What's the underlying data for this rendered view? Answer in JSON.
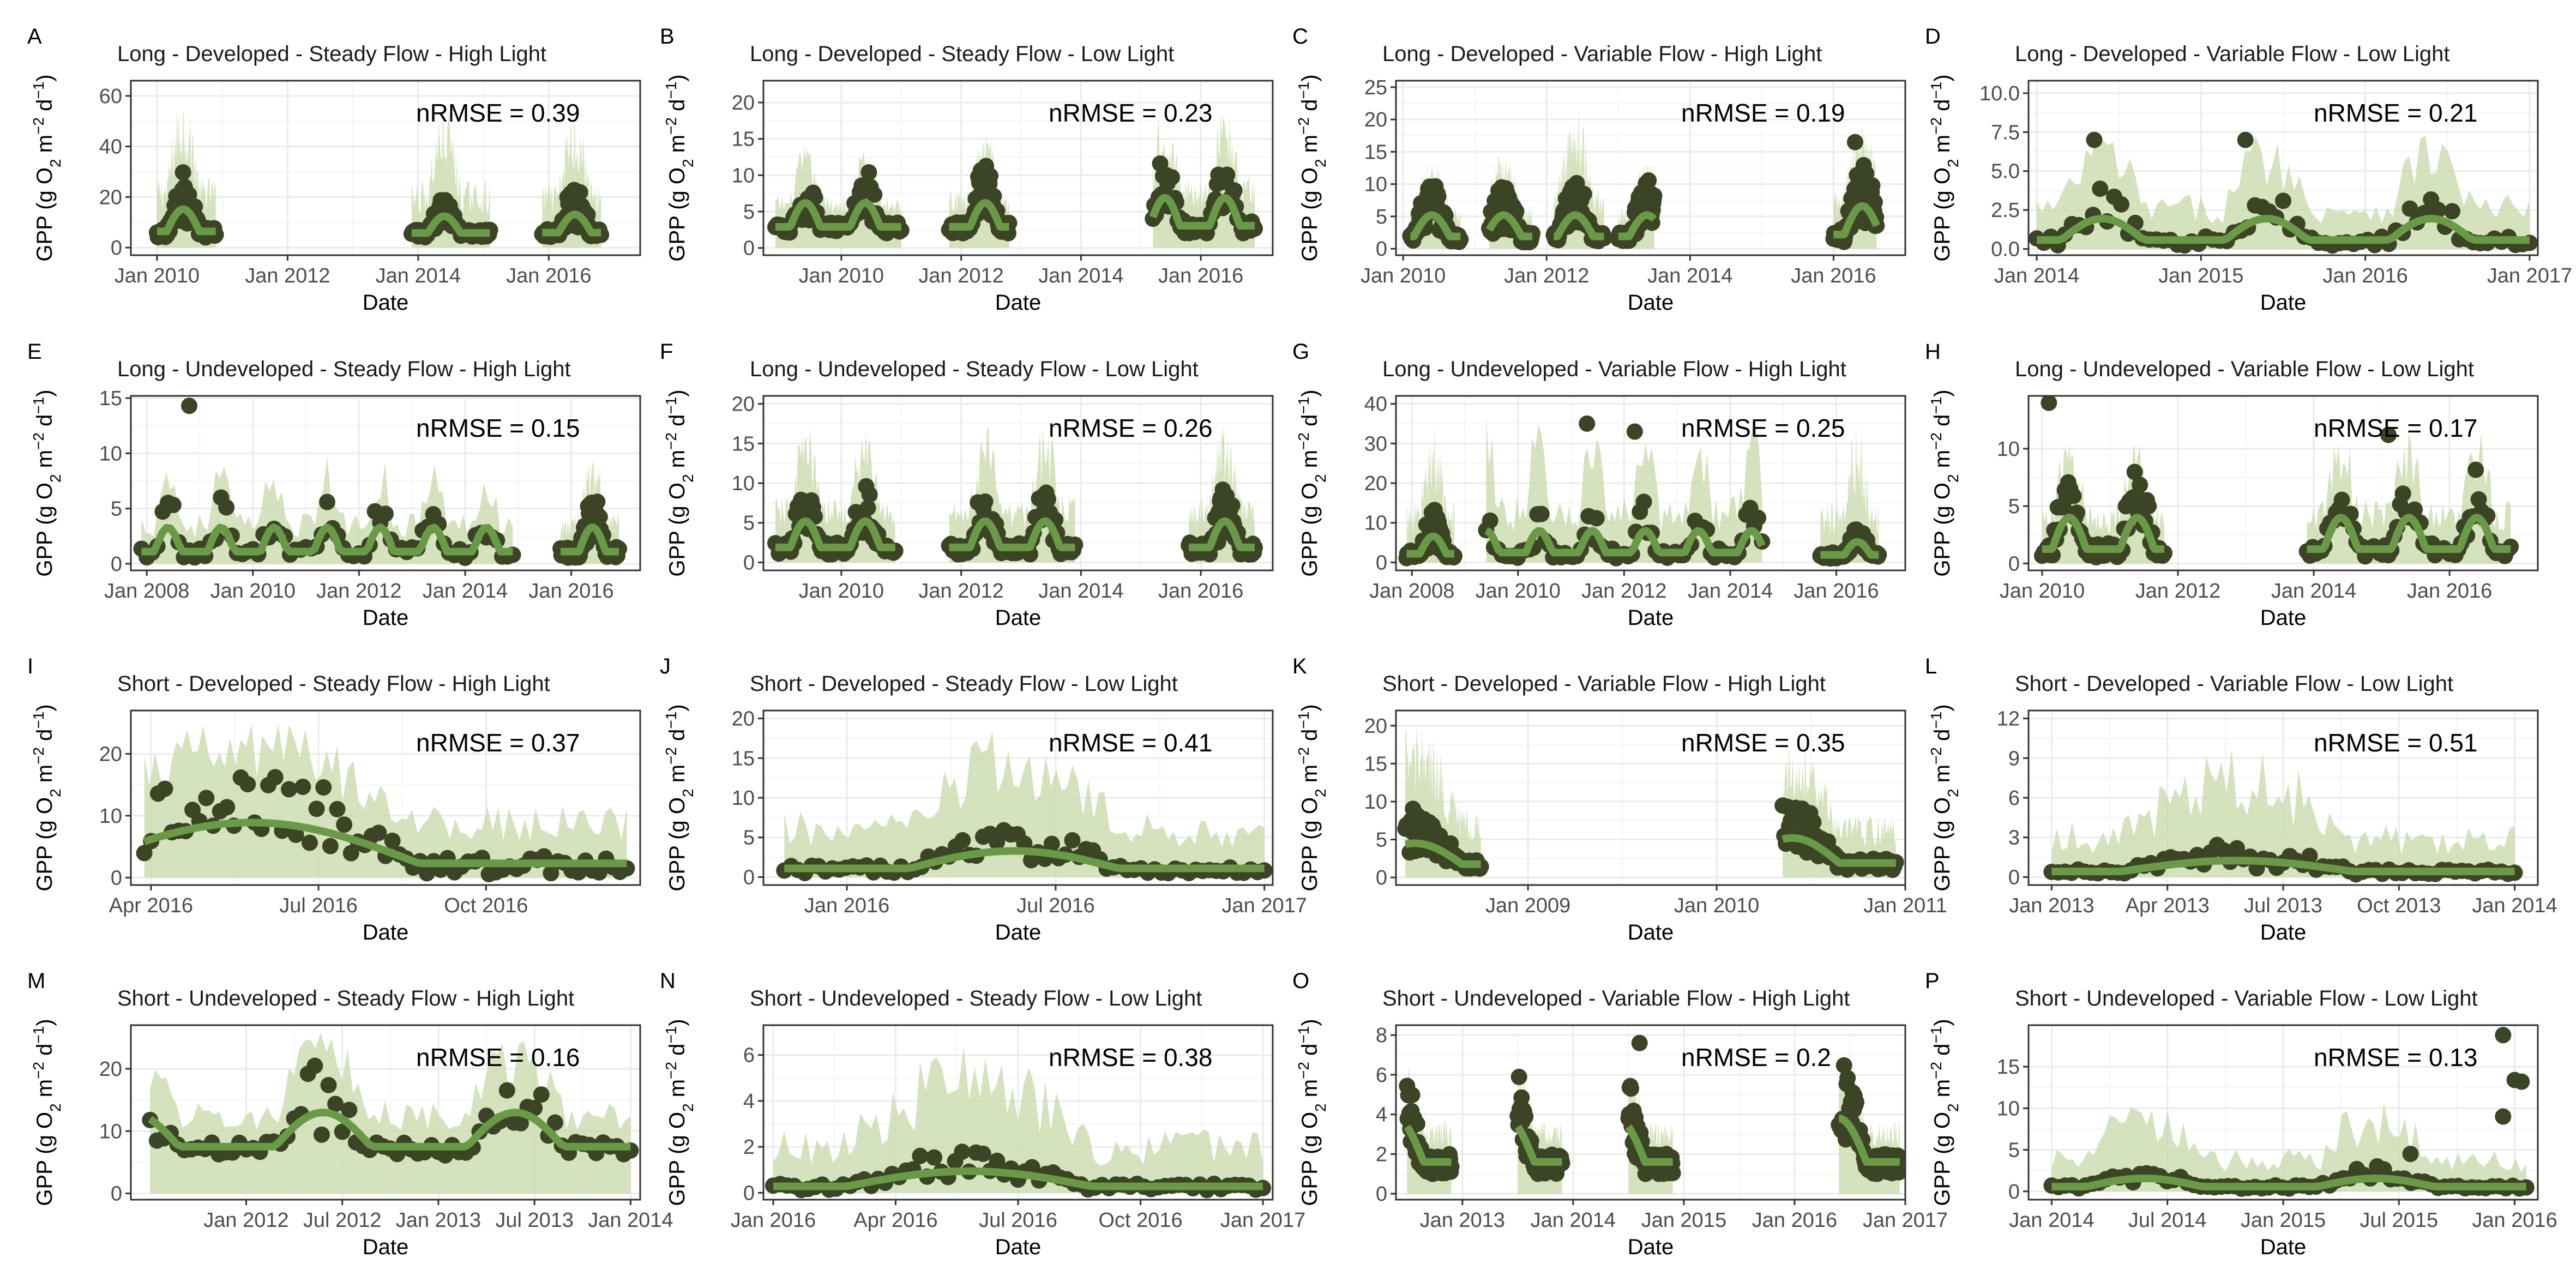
{
  "colors": {
    "observed": "#3b4424",
    "predicted_line": "#6a9a48",
    "interval_fill": "#c7d8a8"
  },
  "axis_labels": {
    "xlabel": "Date",
    "ylabel_main": "GPP (g O",
    "ylabel_sub2": "2",
    "ylabel_mid": " m",
    "ylabel_sup1": "−2",
    "ylabel_mid2": " d",
    "ylabel_sup2": "−1",
    "ylabel_end": ")"
  },
  "chart_data": [
    {
      "letter": "A",
      "title": "Long - Developed - Steady Flow - High Light",
      "metric": "nRMSE =  0.39",
      "type": "line",
      "xlim": [
        2009.6,
        2017.4
      ],
      "ylim": [
        -3,
        66
      ],
      "xticks": [
        {
          "v": 2010,
          "label": "Jan 2010"
        },
        {
          "v": 2012,
          "label": "Jan 2012"
        },
        {
          "v": 2014,
          "label": "Jan 2014"
        },
        {
          "v": 2016,
          "label": "Jan 2016"
        }
      ],
      "yticks": [
        0,
        20,
        40,
        60
      ],
      "segments": [
        {
          "start": 2010.0,
          "end": 2010.9,
          "base": 4,
          "amp": 16,
          "upper": 62
        },
        {
          "start": 2013.9,
          "end": 2015.1,
          "base": 4,
          "amp": 12,
          "upper": 58
        },
        {
          "start": 2015.9,
          "end": 2016.8,
          "base": 4,
          "amp": 13,
          "upper": 56
        }
      ],
      "outliers": []
    },
    {
      "letter": "B",
      "title": "Long - Developed - Steady Flow - Low Light",
      "metric": "nRMSE =  0.23",
      "type": "line",
      "xlim": [
        2008.7,
        2017.2
      ],
      "ylim": [
        -1,
        23
      ],
      "xticks": [
        {
          "v": 2010,
          "label": "Jan 2010"
        },
        {
          "v": 2012,
          "label": "Jan 2012"
        },
        {
          "v": 2014,
          "label": "Jan 2014"
        },
        {
          "v": 2016,
          "label": "Jan 2016"
        }
      ],
      "yticks": [
        0,
        5,
        10,
        15,
        20
      ],
      "segments": [
        {
          "start": 2008.9,
          "end": 2011.0,
          "base": 2,
          "amp": 6,
          "upper": 14
        },
        {
          "start": 2011.8,
          "end": 2012.8,
          "base": 2,
          "amp": 6,
          "upper": 16
        },
        {
          "start": 2015.2,
          "end": 2016.9,
          "base": 2,
          "amp": 7,
          "upper": 20
        }
      ],
      "outliers": []
    },
    {
      "letter": "C",
      "title": "Long - Developed - Variable Flow - High Light",
      "metric": "nRMSE =  0.19",
      "type": "line",
      "xlim": [
        2009.9,
        2017.0
      ],
      "ylim": [
        -1,
        26
      ],
      "xticks": [
        {
          "v": 2010,
          "label": "Jan 2010"
        },
        {
          "v": 2012,
          "label": "Jan 2012"
        },
        {
          "v": 2014,
          "label": "Jan 2014"
        },
        {
          "v": 2016,
          "label": "Jan 2016"
        }
      ],
      "yticks": [
        0,
        5,
        10,
        15,
        20,
        25
      ],
      "segments": [
        {
          "start": 2010.1,
          "end": 2010.8,
          "base": 1,
          "amp": 6,
          "upper": 14
        },
        {
          "start": 2011.2,
          "end": 2011.8,
          "base": 1,
          "amp": 6,
          "upper": 15
        },
        {
          "start": 2012.1,
          "end": 2012.8,
          "base": 1,
          "amp": 6,
          "upper": 22
        },
        {
          "start": 2013.0,
          "end": 2013.5,
          "base": 1,
          "amp": 6,
          "upper": 14
        },
        {
          "start": 2016.0,
          "end": 2016.6,
          "base": 1,
          "amp": 8,
          "upper": 20
        }
      ],
      "outliers": [
        {
          "x": 2016.3,
          "y": 16.5
        }
      ]
    },
    {
      "letter": "D",
      "title": "Long - Developed - Variable Flow - Low Light",
      "metric": "nRMSE =  0.21",
      "type": "line",
      "xlim": [
        2013.95,
        2017.05
      ],
      "ylim": [
        -0.4,
        10.8
      ],
      "xticks": [
        {
          "v": 2014,
          "label": "Jan 2014"
        },
        {
          "v": 2015,
          "label": "Jan 2015"
        },
        {
          "v": 2016,
          "label": "Jan 2016"
        },
        {
          "v": 2017,
          "label": "Jan 2017"
        }
      ],
      "yticks": [
        0.0,
        2.5,
        5.0,
        7.5,
        10.0
      ],
      "segments": [
        {
          "start": 2014.0,
          "end": 2017.0,
          "base": 0.2,
          "amp": 2.5,
          "upper": 8
        }
      ],
      "outliers": [
        {
          "x": 2014.35,
          "y": 7.0
        },
        {
          "x": 2015.27,
          "y": 7.0
        }
      ]
    },
    {
      "letter": "E",
      "title": "Long - Undeveloped - Steady Flow - High Light",
      "metric": "nRMSE =  0.15",
      "type": "line",
      "xlim": [
        2007.7,
        2017.3
      ],
      "ylim": [
        -0.6,
        15.2
      ],
      "xticks": [
        {
          "v": 2008,
          "label": "Jan 2008"
        },
        {
          "v": 2010,
          "label": "Jan 2010"
        },
        {
          "v": 2012,
          "label": "Jan 2012"
        },
        {
          "v": 2014,
          "label": "Jan 2014"
        },
        {
          "v": 2016,
          "label": "Jan 2016"
        }
      ],
      "yticks": [
        0,
        5,
        10,
        15
      ],
      "segments": [
        {
          "start": 2007.9,
          "end": 2014.9,
          "base": 0.5,
          "amp": 4,
          "upper": 10
        },
        {
          "start": 2015.8,
          "end": 2016.9,
          "base": 0.5,
          "amp": 4,
          "upper": 10
        }
      ],
      "outliers": [
        {
          "x": 2008.8,
          "y": 14.3
        }
      ]
    },
    {
      "letter": "F",
      "title": "Long - Undeveloped - Steady Flow - Low Light",
      "metric": "nRMSE =  0.26",
      "type": "line",
      "xlim": [
        2008.7,
        2017.2
      ],
      "ylim": [
        -1,
        21
      ],
      "xticks": [
        {
          "v": 2010,
          "label": "Jan 2010"
        },
        {
          "v": 2012,
          "label": "Jan 2012"
        },
        {
          "v": 2014,
          "label": "Jan 2014"
        },
        {
          "v": 2016,
          "label": "Jan 2016"
        }
      ],
      "yticks": [
        0,
        5,
        10,
        15,
        20
      ],
      "segments": [
        {
          "start": 2008.9,
          "end": 2010.9,
          "base": 1,
          "amp": 6,
          "upper": 18
        },
        {
          "start": 2011.8,
          "end": 2013.9,
          "base": 1,
          "amp": 6,
          "upper": 18
        },
        {
          "start": 2015.8,
          "end": 2016.9,
          "base": 1,
          "amp": 6,
          "upper": 18
        }
      ],
      "outliers": []
    },
    {
      "letter": "G",
      "title": "Long - Undeveloped - Variable Flow - High Light",
      "metric": "nRMSE =  0.25",
      "type": "line",
      "xlim": [
        2007.7,
        2017.3
      ],
      "ylim": [
        -2,
        42
      ],
      "xticks": [
        {
          "v": 2008,
          "label": "Jan 2008"
        },
        {
          "v": 2010,
          "label": "Jan 2010"
        },
        {
          "v": 2012,
          "label": "Jan 2012"
        },
        {
          "v": 2014,
          "label": "Jan 2014"
        },
        {
          "v": 2016,
          "label": "Jan 2016"
        }
      ],
      "yticks": [
        0,
        10,
        20,
        30,
        40
      ],
      "segments": [
        {
          "start": 2007.9,
          "end": 2008.8,
          "base": 1,
          "amp": 8,
          "upper": 35
        },
        {
          "start": 2009.4,
          "end": 2014.6,
          "base": 1,
          "amp": 10,
          "upper": 38
        },
        {
          "start": 2015.7,
          "end": 2016.8,
          "base": 1,
          "amp": 6,
          "upper": 36
        }
      ],
      "outliers": [
        {
          "x": 2011.3,
          "y": 35
        },
        {
          "x": 2012.2,
          "y": 33
        }
      ]
    },
    {
      "letter": "H",
      "title": "Long - Undeveloped - Variable Flow - Low Light",
      "metric": "nRMSE =  0.17",
      "type": "line",
      "xlim": [
        2009.8,
        2017.3
      ],
      "ylim": [
        -0.6,
        14.6
      ],
      "xticks": [
        {
          "v": 2010,
          "label": "Jan 2010"
        },
        {
          "v": 2012,
          "label": "Jan 2012"
        },
        {
          "v": 2014,
          "label": "Jan 2014"
        },
        {
          "v": 2016,
          "label": "Jan 2016"
        }
      ],
      "yticks": [
        0,
        5,
        10
      ],
      "segments": [
        {
          "start": 2010.0,
          "end": 2011.8,
          "base": 0.5,
          "amp": 5,
          "upper": 11
        },
        {
          "start": 2013.9,
          "end": 2016.9,
          "base": 0.5,
          "amp": 5,
          "upper": 12
        }
      ],
      "outliers": [
        {
          "x": 2010.1,
          "y": 14.0
        },
        {
          "x": 2015.1,
          "y": 11.2
        }
      ]
    },
    {
      "letter": "I",
      "title": "Short - Developed - Steady Flow - High Light",
      "metric": "nRMSE =  0.37",
      "type": "line",
      "xlim": [
        2016.22,
        2016.98
      ],
      "ylim": [
        -1.2,
        27
      ],
      "xticks": [
        {
          "v": 2016.25,
          "label": "Apr 2016"
        },
        {
          "v": 2016.5,
          "label": "Jul 2016"
        },
        {
          "v": 2016.75,
          "label": "Oct 2016"
        }
      ],
      "yticks": [
        0,
        10,
        20
      ],
      "segments": [
        {
          "start": 2016.24,
          "end": 2016.96,
          "base": 0.5,
          "amp": 12,
          "upper": 26
        }
      ],
      "outliers": []
    },
    {
      "letter": "J",
      "title": "Short - Developed - Steady Flow - Low Light",
      "metric": "nRMSE =  0.41",
      "type": "line",
      "xlim": [
        2015.8,
        2017.02
      ],
      "ylim": [
        -1,
        21
      ],
      "xticks": [
        {
          "v": 2016,
          "label": "Jan 2016"
        },
        {
          "v": 2016.5,
          "label": "Jul 2016"
        },
        {
          "v": 2017,
          "label": "Jan 2017"
        }
      ],
      "yticks": [
        0,
        5,
        10,
        15,
        20
      ],
      "segments": [
        {
          "start": 2015.85,
          "end": 2017.0,
          "base": 0.5,
          "amp": 4,
          "upper": 19
        }
      ],
      "outliers": []
    },
    {
      "letter": "K",
      "title": "Short - Developed - Variable Flow - High Light",
      "metric": "nRMSE =  0.35",
      "type": "line",
      "xlim": [
        2008.3,
        2011.0
      ],
      "ylim": [
        -1,
        22
      ],
      "xticks": [
        {
          "v": 2009,
          "label": "Jan 2009"
        },
        {
          "v": 2010,
          "label": "Jan 2010"
        },
        {
          "v": 2011,
          "label": "Jan 2011"
        }
      ],
      "yticks": [
        0,
        5,
        10,
        15,
        20
      ],
      "segments": [
        {
          "start": 2008.35,
          "end": 2008.75,
          "base": 1,
          "amp": 5,
          "upper": 20
        },
        {
          "start": 2010.35,
          "end": 2010.95,
          "base": 1,
          "amp": 6,
          "upper": 18
        }
      ],
      "outliers": []
    },
    {
      "letter": "L",
      "title": "Short - Developed - Variable Flow - Low Light",
      "metric": "nRMSE =  0.51",
      "type": "line",
      "xlim": [
        2012.95,
        2014.05
      ],
      "ylim": [
        -0.6,
        12.6
      ],
      "xticks": [
        {
          "v": 2013,
          "label": "Jan 2013"
        },
        {
          "v": 2013.25,
          "label": "Apr 2013"
        },
        {
          "v": 2013.5,
          "label": "Jul 2013"
        },
        {
          "v": 2013.75,
          "label": "Oct 2013"
        },
        {
          "v": 2014,
          "label": "Jan 2014"
        }
      ],
      "yticks": [
        0,
        3,
        6,
        9,
        12
      ],
      "segments": [
        {
          "start": 2013.0,
          "end": 2014.0,
          "base": 0.2,
          "amp": 1.5,
          "upper": 10
        }
      ],
      "outliers": []
    },
    {
      "letter": "M",
      "title": "Short - Undeveloped - Steady Flow - High Light",
      "metric": "nRMSE =  0.16",
      "type": "line",
      "xlim": [
        2011.4,
        2014.05
      ],
      "ylim": [
        -1,
        27
      ],
      "xticks": [
        {
          "v": 2012,
          "label": "Jan 2012"
        },
        {
          "v": 2012.5,
          "label": "Jul 2012"
        },
        {
          "v": 2013,
          "label": "Jan 2013"
        },
        {
          "v": 2013.5,
          "label": "Jul 2013"
        },
        {
          "v": 2014,
          "label": "Jan 2014"
        }
      ],
      "yticks": [
        0,
        10,
        20
      ],
      "segments": [
        {
          "start": 2011.5,
          "end": 2014.0,
          "base": 6,
          "amp": 10,
          "upper": 26
        }
      ],
      "outliers": []
    },
    {
      "letter": "N",
      "title": "Short - Undeveloped - Steady Flow - Low Light",
      "metric": "nRMSE =  0.38",
      "type": "line",
      "xlim": [
        2015.98,
        2017.02
      ],
      "ylim": [
        -0.3,
        7.3
      ],
      "xticks": [
        {
          "v": 2016,
          "label": "Jan 2016"
        },
        {
          "v": 2016.25,
          "label": "Apr 2016"
        },
        {
          "v": 2016.5,
          "label": "Jul 2016"
        },
        {
          "v": 2016.75,
          "label": "Oct 2016"
        },
        {
          "v": 2017,
          "label": "Jan 2017"
        }
      ],
      "yticks": [
        0,
        2,
        4,
        6
      ],
      "segments": [
        {
          "start": 2016.0,
          "end": 2017.0,
          "base": 0.1,
          "amp": 1.2,
          "upper": 6.5
        }
      ],
      "outliers": []
    },
    {
      "letter": "O",
      "title": "Short - Undeveloped - Variable Flow - High Light",
      "metric": "nRMSE =  0.2",
      "type": "line",
      "xlim": [
        2012.4,
        2017.0
      ],
      "ylim": [
        -0.3,
        8.5
      ],
      "xticks": [
        {
          "v": 2013,
          "label": "Jan 2013"
        },
        {
          "v": 2014,
          "label": "Jan 2014"
        },
        {
          "v": 2015,
          "label": "Jan 2015"
        },
        {
          "v": 2016,
          "label": "Jan 2016"
        },
        {
          "v": 2017,
          "label": "Jan 2017"
        }
      ],
      "yticks": [
        0,
        2,
        4,
        6,
        8
      ],
      "segments": [
        {
          "start": 2012.5,
          "end": 2012.9,
          "base": 1,
          "amp": 4,
          "upper": 7
        },
        {
          "start": 2013.5,
          "end": 2013.9,
          "base": 1,
          "amp": 4,
          "upper": 7
        },
        {
          "start": 2014.5,
          "end": 2014.9,
          "base": 1,
          "amp": 4,
          "upper": 7
        },
        {
          "start": 2016.4,
          "end": 2016.95,
          "base": 1,
          "amp": 4,
          "upper": 7
        }
      ],
      "outliers": [
        {
          "x": 2014.6,
          "y": 7.6
        }
      ]
    },
    {
      "letter": "P",
      "title": "Short - Undeveloped - Variable Flow - Low Light",
      "metric": "nRMSE =  0.13",
      "type": "line",
      "xlim": [
        2013.9,
        2016.1
      ],
      "ylim": [
        -1,
        20
      ],
      "xticks": [
        {
          "v": 2014,
          "label": "Jan 2014"
        },
        {
          "v": 2014.5,
          "label": "Jul 2014"
        },
        {
          "v": 2015,
          "label": "Jan 2015"
        },
        {
          "v": 2015.5,
          "label": "Jul 2015"
        },
        {
          "v": 2016,
          "label": "Jan 2016"
        }
      ],
      "yticks": [
        0,
        5,
        10,
        15
      ],
      "segments": [
        {
          "start": 2014.0,
          "end": 2016.05,
          "base": 0.3,
          "amp": 1.8,
          "upper": 12
        }
      ],
      "outliers": [
        {
          "x": 2015.95,
          "y": 18.8
        },
        {
          "x": 2016.0,
          "y": 13.4
        },
        {
          "x": 2016.03,
          "y": 13.2
        },
        {
          "x": 2015.95,
          "y": 9.0
        },
        {
          "x": 2015.55,
          "y": 4.5
        }
      ]
    }
  ]
}
